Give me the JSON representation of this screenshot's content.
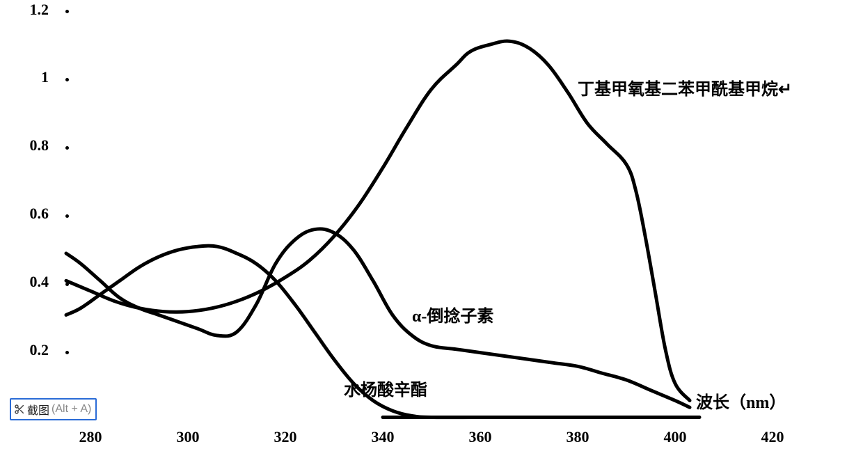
{
  "chart": {
    "type": "line",
    "background_color": "#ffffff",
    "xlim": [
      275,
      425
    ],
    "ylim": [
      0,
      1.2
    ],
    "xticks": [
      280,
      300,
      320,
      340,
      360,
      380,
      400,
      420
    ],
    "yticks": [
      0.2,
      0.4,
      0.6,
      0.8,
      1,
      1.2
    ],
    "tick_fontsize": 22,
    "tick_fontweight": 800,
    "tick_color": "#000000",
    "line_width": 5,
    "line_color": "#000000",
    "grid": false,
    "x_axis_label": "波长（nm）",
    "x_axis_label_fontsize": 24,
    "series": [
      {
        "id": "octyl_salicylate",
        "label": "水杨酸辛酯",
        "label_xy": [
          332,
          0.09
        ],
        "color": "#000000",
        "points": [
          [
            275,
            0.3
          ],
          [
            278,
            0.32
          ],
          [
            282,
            0.36
          ],
          [
            286,
            0.4
          ],
          [
            290,
            0.44
          ],
          [
            294,
            0.47
          ],
          [
            298,
            0.49
          ],
          [
            302,
            0.5
          ],
          [
            306,
            0.5
          ],
          [
            310,
            0.48
          ],
          [
            314,
            0.45
          ],
          [
            318,
            0.4
          ],
          [
            322,
            0.33
          ],
          [
            326,
            0.25
          ],
          [
            330,
            0.17
          ],
          [
            334,
            0.1
          ],
          [
            338,
            0.05
          ],
          [
            342,
            0.02
          ],
          [
            346,
            0.005
          ],
          [
            350,
            0.001
          ],
          [
            360,
            0.001
          ],
          [
            380,
            0.001
          ],
          [
            400,
            0.001
          ]
        ]
      },
      {
        "id": "alpha_mangostin",
        "label": "α-倒捻子素",
        "label_xy": [
          346,
          0.31
        ],
        "color": "#000000",
        "points": [
          [
            275,
            0.48
          ],
          [
            278,
            0.45
          ],
          [
            282,
            0.4
          ],
          [
            286,
            0.35
          ],
          [
            290,
            0.32
          ],
          [
            294,
            0.3
          ],
          [
            298,
            0.28
          ],
          [
            302,
            0.26
          ],
          [
            306,
            0.24
          ],
          [
            310,
            0.25
          ],
          [
            314,
            0.33
          ],
          [
            318,
            0.45
          ],
          [
            322,
            0.52
          ],
          [
            326,
            0.55
          ],
          [
            330,
            0.54
          ],
          [
            334,
            0.49
          ],
          [
            338,
            0.4
          ],
          [
            342,
            0.3
          ],
          [
            346,
            0.24
          ],
          [
            350,
            0.21
          ],
          [
            355,
            0.2
          ],
          [
            360,
            0.19
          ],
          [
            365,
            0.18
          ],
          [
            370,
            0.17
          ],
          [
            375,
            0.16
          ],
          [
            380,
            0.15
          ],
          [
            385,
            0.13
          ],
          [
            390,
            0.11
          ],
          [
            395,
            0.08
          ],
          [
            400,
            0.05
          ],
          [
            403,
            0.03
          ]
        ]
      },
      {
        "id": "butyl_methoxydibenzoylmethane",
        "label": "丁基甲氧基二苯甲酰基甲烷↵",
        "label_xy": [
          380,
          0.98
        ],
        "color": "#000000",
        "points": [
          [
            275,
            0.4
          ],
          [
            280,
            0.37
          ],
          [
            285,
            0.34
          ],
          [
            290,
            0.32
          ],
          [
            295,
            0.31
          ],
          [
            300,
            0.31
          ],
          [
            305,
            0.32
          ],
          [
            310,
            0.34
          ],
          [
            315,
            0.37
          ],
          [
            320,
            0.41
          ],
          [
            325,
            0.46
          ],
          [
            330,
            0.53
          ],
          [
            335,
            0.62
          ],
          [
            340,
            0.73
          ],
          [
            345,
            0.85
          ],
          [
            350,
            0.96
          ],
          [
            355,
            1.03
          ],
          [
            358,
            1.07
          ],
          [
            362,
            1.09
          ],
          [
            366,
            1.1
          ],
          [
            370,
            1.08
          ],
          [
            374,
            1.03
          ],
          [
            378,
            0.95
          ],
          [
            382,
            0.86
          ],
          [
            386,
            0.8
          ],
          [
            390,
            0.74
          ],
          [
            392,
            0.66
          ],
          [
            394,
            0.52
          ],
          [
            396,
            0.36
          ],
          [
            398,
            0.2
          ],
          [
            400,
            0.1
          ],
          [
            403,
            0.05
          ]
        ]
      }
    ]
  },
  "screenshot_widget": {
    "icon": "scissors",
    "label": "截图",
    "hint": "(Alt + A)",
    "border_color": "#2a6bd6",
    "position_xy": [
      275.5,
      0.018
    ]
  }
}
